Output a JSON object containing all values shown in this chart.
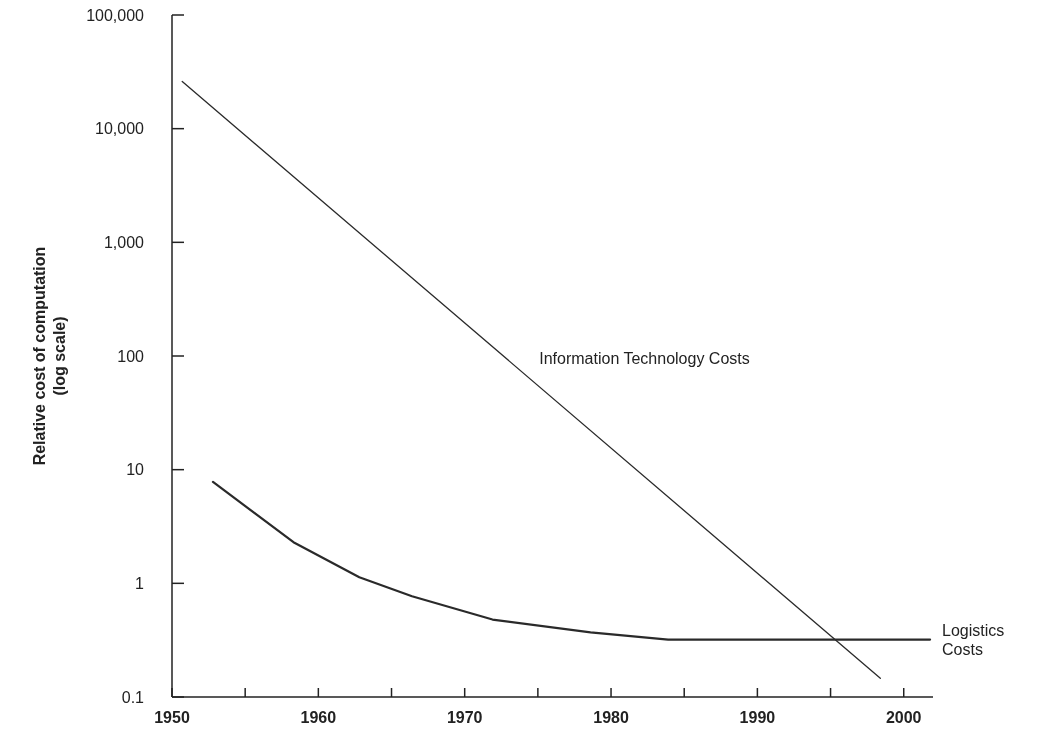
{
  "chart_data": {
    "type": "line",
    "ylabel": "Relative cost of computation\n(log scale)",
    "log": true,
    "xlim": [
      1950,
      2002
    ],
    "xticks": [
      1950,
      {
        "value": 1955,
        "label": null
      },
      1960,
      {
        "value": 1965,
        "label": null
      },
      1970,
      {
        "value": 1975,
        "label": null
      },
      1980,
      {
        "value": 1985,
        "label": null
      },
      1990,
      {
        "value": 1995,
        "label": null
      },
      2000
    ],
    "ylim": [
      0.1,
      100000
    ],
    "yticks": [
      {
        "value": 0.1,
        "label": "0.1"
      },
      1,
      10,
      100,
      {
        "value": 1000,
        "label": "1,000"
      },
      {
        "value": 10000,
        "label": "10,000"
      },
      {
        "value": 100000,
        "label": "100,000"
      }
    ],
    "marker": "none",
    "line_style": "solid",
    "series": [
      {
        "name": "Information Technology Costs",
        "color": "#2a2a2a",
        "x": [
          1950.7,
          1998.4
        ],
        "values": [
          26000,
          0.146
        ]
      },
      {
        "name": "Logistics Costs",
        "color": "#2a2a2a",
        "x": [
          1952.8,
          1958.3,
          1962.8,
          1966.4,
          1971.9,
          1978.6,
          1983.9,
          2001.8
        ],
        "values": [
          7.8,
          2.3,
          1.13,
          0.77,
          0.48,
          0.37,
          0.32,
          0.32
        ]
      }
    ]
  }
}
